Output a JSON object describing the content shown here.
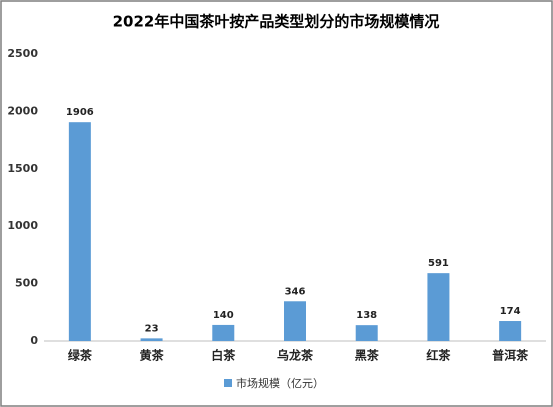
{
  "chart_data": {
    "type": "bar",
    "title": "2022年中国茶叶按产品类型划分的市场规模情况",
    "categories": [
      "绿茶",
      "黄茶",
      "白茶",
      "乌龙茶",
      "黑茶",
      "红茶",
      "普洱茶"
    ],
    "series": [
      {
        "name": "市场规模（亿元）",
        "color": "#5b9bd5",
        "values": [
          1906,
          23,
          140,
          346,
          138,
          591,
          174
        ]
      }
    ],
    "ylim": [
      0,
      2500
    ],
    "yticks": [
      0,
      500,
      1000,
      1500,
      2000,
      2500
    ],
    "grid": false,
    "legend": "bottom"
  }
}
